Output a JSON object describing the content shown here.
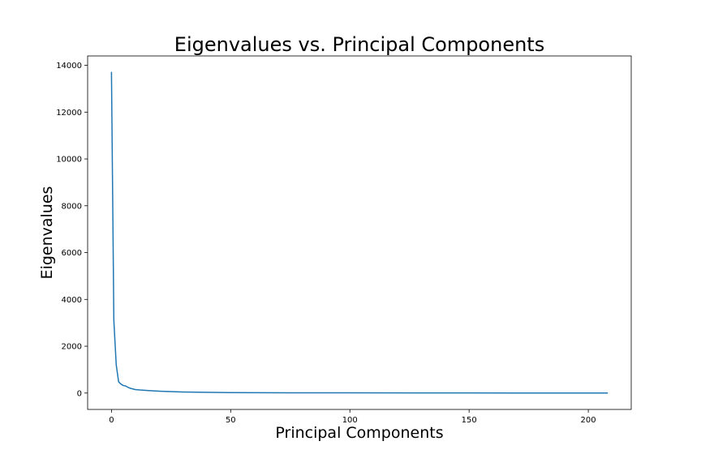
{
  "chart_data": {
    "type": "line",
    "title": "Eigenvalues vs. Principal Components",
    "xlabel": "Principal Components",
    "ylabel": "Eigenvalues",
    "xlim": [
      -10,
      218
    ],
    "ylim": [
      -700,
      14400
    ],
    "x_ticks": [
      0,
      50,
      100,
      150,
      200
    ],
    "y_ticks": [
      0,
      2000,
      4000,
      6000,
      8000,
      10000,
      12000,
      14000
    ],
    "x_tick_labels": [
      "0",
      "50",
      "100",
      "150",
      "200"
    ],
    "y_tick_labels": [
      "0",
      "2000",
      "4000",
      "6000",
      "8000",
      "10000",
      "12000",
      "14000"
    ],
    "grid": false,
    "series": [
      {
        "color": "#1f77b4",
        "x": [
          0,
          1,
          2,
          3,
          4,
          5,
          6,
          7,
          8,
          10,
          12,
          15,
          20,
          25,
          30,
          40,
          50,
          75,
          100,
          150,
          208
        ],
        "y": [
          13700,
          3100,
          1200,
          480,
          380,
          320,
          300,
          240,
          200,
          150,
          130,
          110,
          80,
          60,
          45,
          30,
          20,
          12,
          8,
          4,
          2
        ]
      }
    ]
  }
}
